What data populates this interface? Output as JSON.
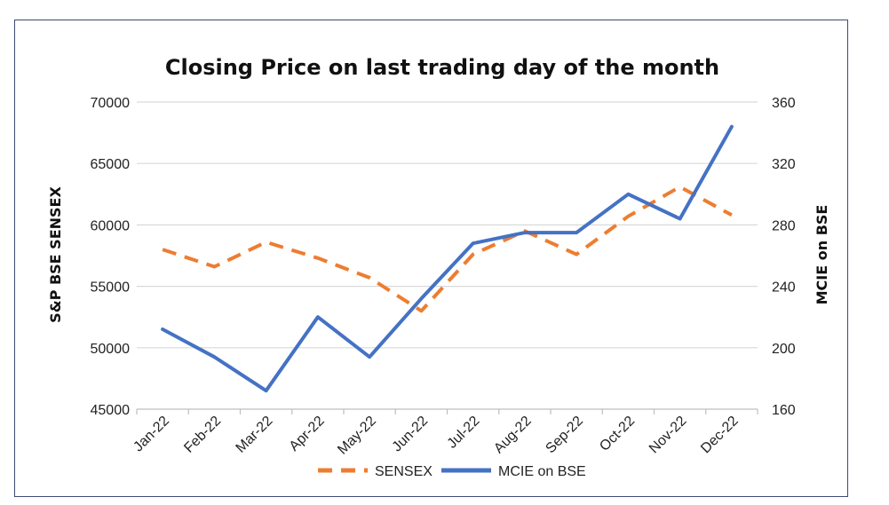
{
  "chart_data": {
    "type": "line",
    "title": "Closing Price on last trading day of the month",
    "categories": [
      "Jan-22",
      "Feb-22",
      "Mar-22",
      "Apr-22",
      "May-22",
      "Jun-22",
      "Jul-22",
      "Aug-22",
      "Sep-22",
      "Oct-22",
      "Nov-22",
      "Dec-22"
    ],
    "series": [
      {
        "name": "SENSEX",
        "axis": "left",
        "color": "#ed7d31",
        "dashed": true,
        "values": [
          58000,
          56600,
          58600,
          57300,
          55700,
          53000,
          57600,
          59500,
          57600,
          60700,
          63100,
          60800
        ]
      },
      {
        "name": "MCIE on BSE",
        "axis": "right",
        "color": "#4472c4",
        "dashed": false,
        "values": [
          212,
          194,
          172,
          220,
          194,
          232,
          268,
          275,
          275,
          300,
          284,
          344
        ]
      }
    ],
    "ylabel_left": "S&P BSE SENSEX",
    "ylabel_right": "MCIE on BSE",
    "ylim_left": [
      45000,
      70000
    ],
    "ylim_right": [
      160,
      360
    ],
    "yticks_left": [
      "70000",
      "65000",
      "60000",
      "55000",
      "50000",
      "45000"
    ],
    "yticks_right": [
      "360",
      "320",
      "280",
      "240",
      "200",
      "160"
    ],
    "grid": true,
    "legend_position": "bottom"
  }
}
